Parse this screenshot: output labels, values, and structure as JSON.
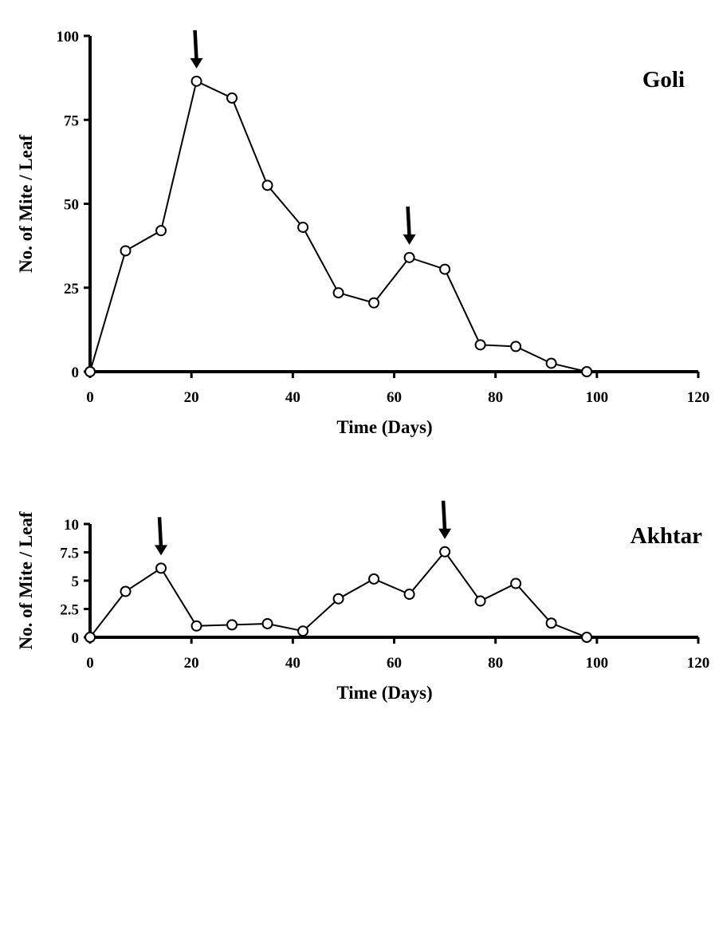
{
  "chart_data": [
    {
      "type": "line",
      "annotation": "Goli",
      "xlabel": "Time (Days)",
      "ylabel": "No. of Mite / Leaf",
      "xlim": [
        0,
        120
      ],
      "ylim": [
        0,
        100
      ],
      "x_ticks": [
        "0",
        "20",
        "40",
        "60",
        "80",
        "100",
        "120"
      ],
      "y_ticks": [
        "0",
        "25",
        "50",
        "75",
        "100"
      ],
      "grid": false,
      "marker": "open-circle",
      "series": [
        {
          "x": [
            0,
            7,
            14,
            21,
            28,
            35,
            42,
            49,
            56,
            63,
            70,
            77,
            84,
            91,
            98
          ],
          "values": [
            0,
            36,
            42,
            86.5,
            81.5,
            55.5,
            43,
            23.5,
            20.5,
            34,
            30.5,
            8,
            7.5,
            2.5,
            0
          ]
        }
      ],
      "arrows_at_x": [
        21,
        63
      ]
    },
    {
      "type": "line",
      "annotation": "Akhtar",
      "xlabel": "Time (Days)",
      "ylabel": "No. of Mite / Leaf",
      "xlim": [
        0,
        120
      ],
      "ylim": [
        0,
        10
      ],
      "x_ticks": [
        "0",
        "20",
        "40",
        "60",
        "80",
        "100",
        "120"
      ],
      "y_ticks": [
        "0",
        "2.5",
        "5",
        "7.5",
        "10"
      ],
      "grid": false,
      "marker": "open-circle",
      "series": [
        {
          "x": [
            0,
            7,
            14,
            21,
            28,
            35,
            42,
            49,
            56,
            63,
            70,
            77,
            84,
            91,
            98
          ],
          "values": [
            0,
            4.05,
            6.1,
            1.0,
            1.1,
            1.2,
            0.55,
            3.4,
            5.15,
            3.8,
            7.55,
            3.2,
            4.75,
            1.25,
            0
          ]
        }
      ],
      "arrows_at_x": [
        14,
        70
      ]
    }
  ]
}
